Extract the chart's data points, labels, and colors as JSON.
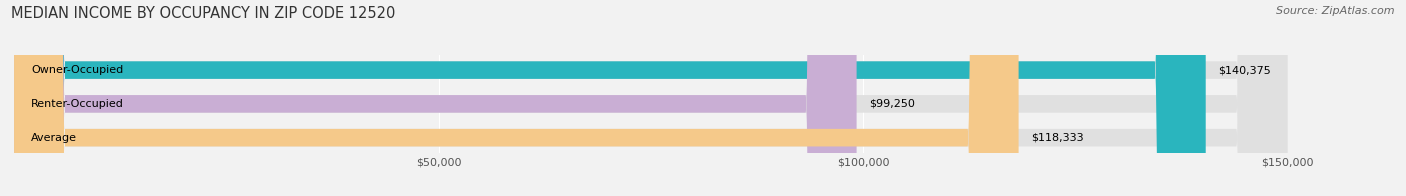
{
  "title": "MEDIAN INCOME BY OCCUPANCY IN ZIP CODE 12520",
  "source": "Source: ZipAtlas.com",
  "categories": [
    "Owner-Occupied",
    "Renter-Occupied",
    "Average"
  ],
  "values": [
    140375,
    99250,
    118333
  ],
  "labels": [
    "$140,375",
    "$99,250",
    "$118,333"
  ],
  "bar_colors": [
    "#2ab5be",
    "#c9aed4",
    "#f5c98a"
  ],
  "background_color": "#f2f2f2",
  "bar_bg_color": "#e0e0e0",
  "xlim": [
    0,
    150000
  ],
  "xticks": [
    50000,
    100000,
    150000
  ],
  "xtick_labels": [
    "$50,000",
    "$100,000",
    "$150,000"
  ],
  "figsize": [
    14.06,
    1.96
  ],
  "dpi": 100,
  "title_fontsize": 10.5,
  "label_fontsize": 8.0,
  "tick_fontsize": 8,
  "source_fontsize": 8
}
